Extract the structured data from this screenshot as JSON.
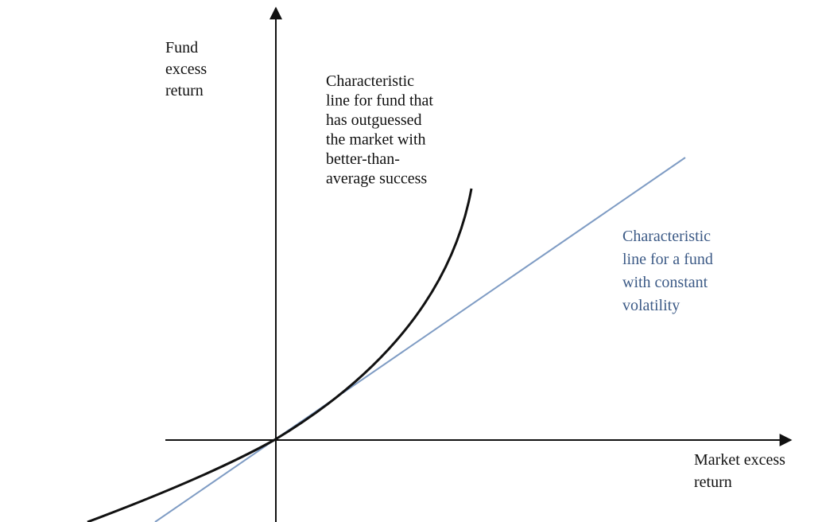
{
  "y_axis_label": [
    "Fund",
    "excess",
    "return"
  ],
  "x_axis_label": [
    "Market excess",
    "return"
  ],
  "curve_label": [
    "Characteristic",
    "line for fund that",
    "has outguessed",
    "the market with",
    "better-than-",
    "average  success"
  ],
  "line_label": [
    "Characteristic",
    "line for a fund",
    "with constant",
    "volatility"
  ]
}
